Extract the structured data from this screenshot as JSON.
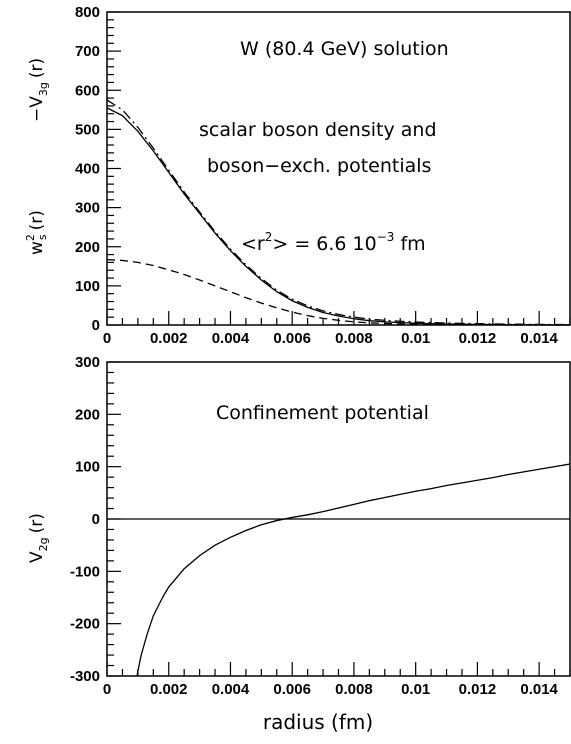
{
  "chart_data": [
    {
      "type": "line",
      "title": "",
      "xlabel": "",
      "xlim": [
        0,
        0.015
      ],
      "ylim": [
        0,
        800
      ],
      "x_ticks": [
        "0",
        "0.002",
        "0.004",
        "0.006",
        "0.008",
        "0.01",
        "0.012",
        "0.014"
      ],
      "y_ticks": [
        "0",
        "100",
        "200",
        "300",
        "400",
        "500",
        "600",
        "700",
        "800"
      ],
      "ylabel_parts": {
        "left_main": "w",
        "left_sup": "2",
        "left_sub": "s",
        "left_arg": "(r)",
        "right_main": "−V",
        "right_sub": "3g",
        "right_arg": "(r)"
      },
      "annotations": [
        "W (80.4 GeV) solution",
        "scalar boson density and",
        "boson−exch. potentials"
      ],
      "formula": {
        "pre": "<r",
        "sup": "2",
        "mid": "> = 6.6 10",
        "exp": "−3",
        "post": " fm"
      },
      "series": [
        {
          "style": "solid",
          "x": [
            0,
            0.0005,
            0.001,
            0.0015,
            0.002,
            0.0025,
            0.003,
            0.0035,
            0.004,
            0.0045,
            0.005,
            0.0055,
            0.006,
            0.0065,
            0.007,
            0.0075,
            0.008,
            0.0085,
            0.009,
            0.0095,
            0.01,
            0.011,
            0.012,
            0.013,
            0.014,
            0.015
          ],
          "y": [
            555,
            535,
            495,
            445,
            390,
            335,
            285,
            235,
            190,
            150,
            115,
            85,
            62,
            45,
            32,
            23,
            16,
            11,
            8,
            6,
            4.5,
            2.5,
            1.5,
            0.8,
            0.4,
            0.2
          ]
        },
        {
          "style": "dash-dot",
          "x": [
            0,
            0.0005,
            0.001,
            0.0015,
            0.002,
            0.0025,
            0.003,
            0.0035,
            0.004,
            0.0045,
            0.005,
            0.0055,
            0.006,
            0.0065,
            0.007,
            0.0075,
            0.008,
            0.0085,
            0.009,
            0.0095,
            0.01,
            0.011,
            0.012,
            0.013,
            0.014,
            0.015
          ],
          "y": [
            575,
            550,
            505,
            452,
            396,
            340,
            289,
            239,
            194,
            154,
            119,
            89,
            66,
            49,
            36,
            27,
            20,
            15,
            12,
            9.5,
            7.5,
            5,
            3.3,
            2.2,
            1.4,
            1
          ]
        },
        {
          "style": "dashed",
          "x": [
            0,
            0.0005,
            0.001,
            0.0015,
            0.002,
            0.0025,
            0.003,
            0.0035,
            0.004,
            0.0045,
            0.005,
            0.0055,
            0.006,
            0.0065,
            0.007,
            0.0075,
            0.008,
            0.0085,
            0.009,
            0.0095,
            0.01,
            0.011,
            0.012,
            0.013,
            0.014,
            0.015
          ],
          "y": [
            167,
            165,
            160,
            152,
            141,
            129,
            115,
            100,
            85,
            70,
            56,
            44,
            33,
            24,
            17,
            12,
            8,
            5.5,
            3.8,
            2.6,
            1.8,
            0.9,
            0.4,
            0.2,
            0.1,
            0.05
          ]
        }
      ]
    },
    {
      "type": "line",
      "title": "",
      "xlabel": "radius (fm)",
      "xlim": [
        0,
        0.015
      ],
      "ylim": [
        -300,
        300
      ],
      "x_ticks": [
        "0",
        "0.002",
        "0.004",
        "0.006",
        "0.008",
        "0.01",
        "0.012",
        "0.014"
      ],
      "y_ticks": [
        "-300",
        "-200",
        "-100",
        "0",
        "100",
        "200",
        "300"
      ],
      "ylabel_parts": {
        "main": "V",
        "sub": "2g",
        "arg": "(r)"
      },
      "annotations": [
        "Confinement potential"
      ],
      "series": [
        {
          "style": "solid",
          "x": [
            0.00097,
            0.0011,
            0.0013,
            0.0015,
            0.0018,
            0.002,
            0.0025,
            0.003,
            0.0035,
            0.004,
            0.0045,
            0.005,
            0.0055,
            0.006,
            0.0065,
            0.007,
            0.0075,
            0.008,
            0.0085,
            0.009,
            0.0095,
            0.01,
            0.0105,
            0.011,
            0.0115,
            0.012,
            0.0125,
            0.013,
            0.0135,
            0.014,
            0.0145,
            0.015
          ],
          "y": [
            -300,
            -262,
            -220,
            -185,
            -150,
            -130,
            -95,
            -70,
            -50,
            -35,
            -22,
            -11,
            -3,
            3,
            8,
            14,
            21,
            28,
            35,
            41,
            47,
            53,
            58,
            64,
            69,
            74,
            79,
            85,
            90,
            95,
            100,
            105
          ]
        },
        {
          "style": "solid",
          "x": [
            0,
            0.015
          ],
          "y": [
            0,
            0
          ]
        }
      ]
    }
  ]
}
